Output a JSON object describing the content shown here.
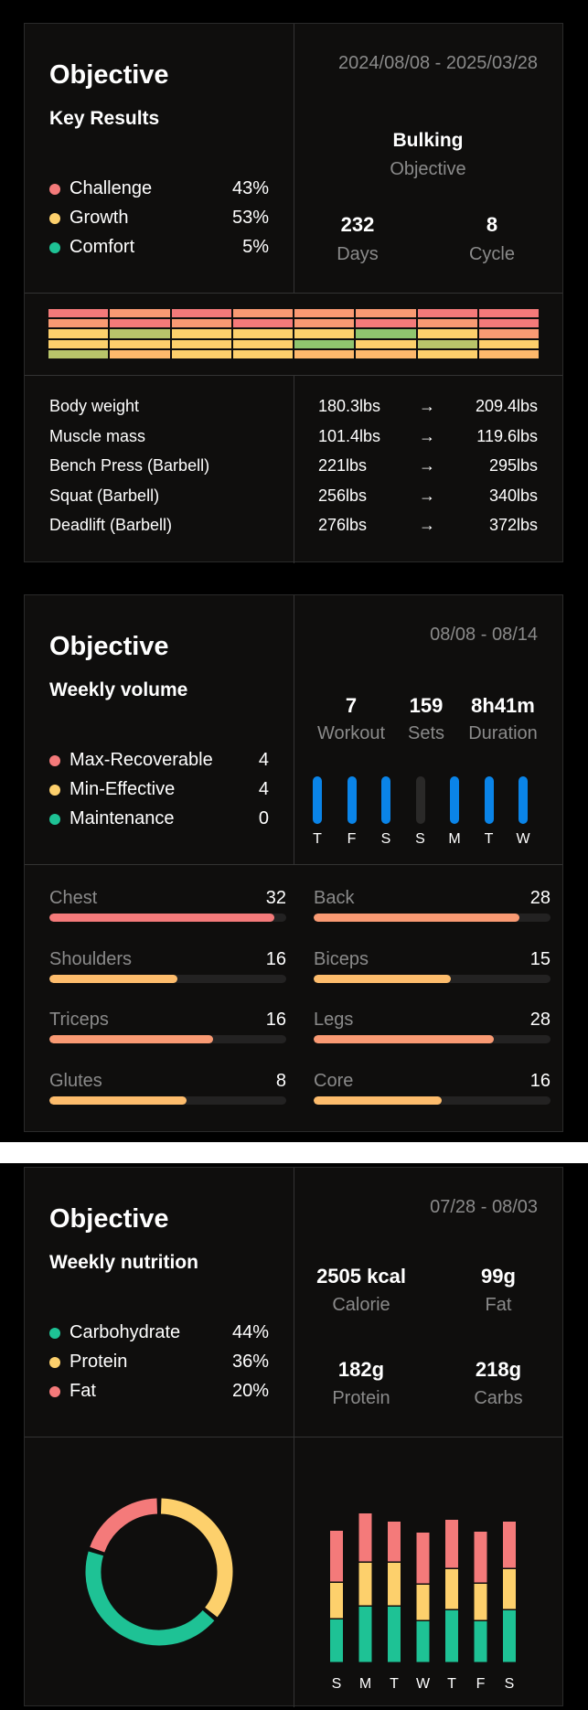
{
  "card1": {
    "title": "Objective",
    "subtitle": "Key Results",
    "legend": [
      {
        "label": "Challenge",
        "value": "43%",
        "color": "#f47a7a"
      },
      {
        "label": "Growth",
        "value": "53%",
        "color": "#fdd06c"
      },
      {
        "label": "Comfort",
        "value": "5%",
        "color": "#1ec295"
      }
    ],
    "date_range": "2024/08/08 - 2025/03/28",
    "goal": "Bulking",
    "goal_caption": "Objective",
    "days_value": "232",
    "days_caption": "Days",
    "cycle_value": "8",
    "cycle_caption": "Cycle",
    "heat_colors": [
      [
        "#f47a7a",
        "#f99a73",
        "#f47a7a",
        "#f99a73",
        "#f99a73",
        "#f99a73",
        "#f47a7a",
        "#f47a7a"
      ],
      [
        "#f99a73",
        "#f47a7a",
        "#f99a73",
        "#f47a7a",
        "#f99a73",
        "#f47a7a",
        "#f99a73",
        "#f47a7a"
      ],
      [
        "#fdd06c",
        "#b8c46a",
        "#fdd06c",
        "#fdd06c",
        "#fdd06c",
        "#8fc56e",
        "#fdd06c",
        "#f99a73"
      ],
      [
        "#fdd06c",
        "#fdd06c",
        "#fdd06c",
        "#fdd06c",
        "#8fc56e",
        "#fdd06c",
        "#b8c46a",
        "#fdd06c"
      ],
      [
        "#b8c46a",
        "#fdb86c",
        "#fdd06c",
        "#fdd06c",
        "#fdb86c",
        "#fdb86c",
        "#fdd06c",
        "#fdb86c"
      ]
    ],
    "metrics": [
      {
        "name": "Body weight",
        "from": "180.3lbs",
        "arrow": "→",
        "to": "209.4lbs"
      },
      {
        "name": "Muscle mass",
        "from": "101.4lbs",
        "arrow": "→",
        "to": "119.6lbs"
      },
      {
        "name": "Bench Press (Barbell)",
        "from": "221lbs",
        "arrow": "→",
        "to": "295lbs"
      },
      {
        "name": "Squat (Barbell)",
        "from": "256lbs",
        "arrow": "→",
        "to": "340lbs"
      },
      {
        "name": "Deadlift (Barbell)",
        "from": "276lbs",
        "arrow": "→",
        "to": "372lbs"
      }
    ]
  },
  "card2": {
    "title": "Objective",
    "subtitle": "Weekly volume",
    "legend": [
      {
        "label": "Max-Recoverable",
        "value": "4",
        "color": "#f47a7a"
      },
      {
        "label": "Min-Effective",
        "value": "4",
        "color": "#fdd06c"
      },
      {
        "label": "Maintenance",
        "value": "0",
        "color": "#1ec295"
      }
    ],
    "date_range": "08/08 - 08/14",
    "stats": [
      {
        "value": "7",
        "caption": "Workout"
      },
      {
        "value": "159",
        "caption": "Sets"
      },
      {
        "value": "8h41m",
        "caption": "Duration"
      }
    ],
    "days": [
      {
        "label": "T",
        "active": true
      },
      {
        "label": "F",
        "active": true
      },
      {
        "label": "S",
        "active": true
      },
      {
        "label": "S",
        "active": false
      },
      {
        "label": "M",
        "active": true
      },
      {
        "label": "T",
        "active": true
      },
      {
        "label": "W",
        "active": true
      }
    ],
    "muscles": [
      {
        "name": "Chest",
        "value": "32",
        "fraction": 0.95,
        "color": "#f47a7a"
      },
      {
        "name": "Back",
        "value": "28",
        "fraction": 0.87,
        "color": "#f99a73"
      },
      {
        "name": "Shoulders",
        "value": "16",
        "fraction": 0.54,
        "color": "#fdbc6c"
      },
      {
        "name": "Biceps",
        "value": "15",
        "fraction": 0.58,
        "color": "#fdbc6c"
      },
      {
        "name": "Triceps",
        "value": "16",
        "fraction": 0.69,
        "color": "#f99a73"
      },
      {
        "name": "Legs",
        "value": "28",
        "fraction": 0.76,
        "color": "#f99a73"
      },
      {
        "name": "Glutes",
        "value": "8",
        "fraction": 0.58,
        "color": "#fdbc6c"
      },
      {
        "name": "Core",
        "value": "16",
        "fraction": 0.54,
        "color": "#fdbc6c"
      }
    ]
  },
  "card3": {
    "title": "Objective",
    "subtitle": "Weekly nutrition",
    "legend": [
      {
        "label": "Carbohydrate",
        "value": "44%",
        "color": "#1ec295"
      },
      {
        "label": "Protein",
        "value": "36%",
        "color": "#fdd06c"
      },
      {
        "label": "Fat",
        "value": "20%",
        "color": "#f47a7a"
      }
    ],
    "date_range": "07/28 - 08/03",
    "stats": [
      {
        "value": "2505 kcal",
        "caption": "Calorie"
      },
      {
        "value": "99g",
        "caption": "Fat"
      },
      {
        "value": "182g",
        "caption": "Protein"
      },
      {
        "value": "218g",
        "caption": "Carbs"
      }
    ]
  },
  "chart_data": [
    {
      "type": "pie",
      "categories": [
        "Carbohydrate",
        "Protein",
        "Fat"
      ],
      "values": [
        44,
        36,
        20
      ],
      "colors": [
        "#1ec295",
        "#fdd06c",
        "#f47a7a"
      ]
    },
    {
      "type": "bar",
      "categories": [
        "S",
        "M",
        "T",
        "W",
        "T",
        "F",
        "S"
      ],
      "series": [
        {
          "name": "Carbohydrate",
          "values": [
            48,
            62,
            62,
            46,
            58,
            46,
            58
          ],
          "color": "#1ec295"
        },
        {
          "name": "Protein",
          "values": [
            40,
            48,
            48,
            40,
            45,
            41,
            45
          ],
          "color": "#fdd06c"
        },
        {
          "name": "Fat",
          "values": [
            57,
            54,
            45,
            57,
            54,
            57,
            52
          ],
          "color": "#f47a7a"
        }
      ]
    }
  ]
}
